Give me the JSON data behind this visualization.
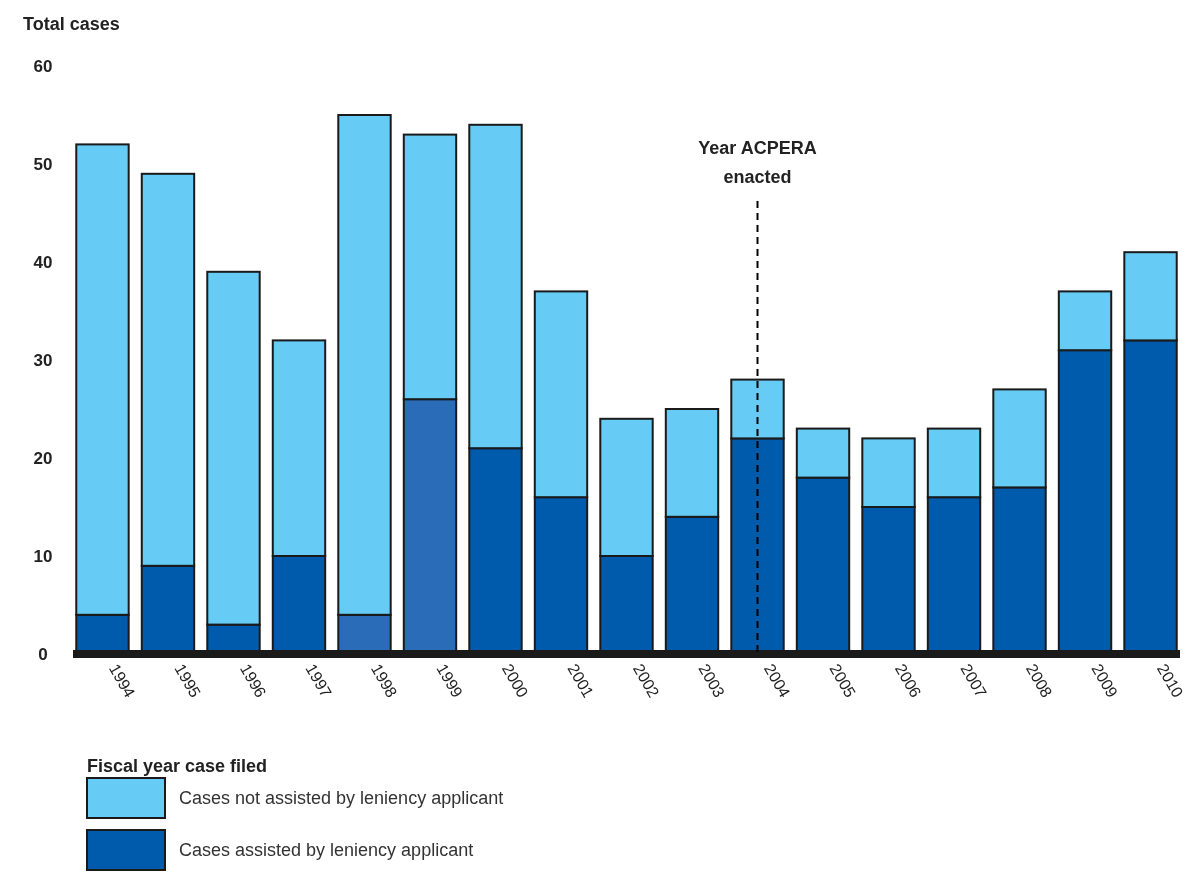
{
  "chart_data": {
    "type": "bar",
    "stacked": true,
    "ylabel": "Total cases",
    "xlabel": "Fiscal year case filed",
    "categories": [
      "1994",
      "1995",
      "1996",
      "1997",
      "1998",
      "1999",
      "2000",
      "2001",
      "2002",
      "2003",
      "2004",
      "2005",
      "2006",
      "2007",
      "2008",
      "2009",
      "2010"
    ],
    "series": [
      {
        "name": "Cases assisted by leniency applicant",
        "color": "#005bac",
        "colors": [
          "#005bac",
          "#005bac",
          "#005bac",
          "#005bac",
          "#2a6cb8",
          "#2a6cb8",
          "#005bac",
          "#005bac",
          "#005bac",
          "#005bac",
          "#005bac",
          "#005bac",
          "#005bac",
          "#005bac",
          "#005bac",
          "#005bac",
          "#005bac"
        ],
        "values": [
          4,
          9,
          3,
          10,
          4,
          26,
          21,
          16,
          10,
          14,
          22,
          18,
          15,
          16,
          17,
          31,
          32
        ]
      },
      {
        "name": "Cases not assisted by leniency applicant",
        "color": "#66ccf5",
        "values": [
          48,
          40,
          36,
          22,
          51,
          27,
          33,
          21,
          14,
          11,
          6,
          5,
          7,
          7,
          10,
          6,
          9
        ]
      }
    ],
    "ylim": [
      0,
      60
    ],
    "yticks": [
      0,
      10,
      20,
      30,
      40,
      50,
      60
    ],
    "grid": false,
    "legend": "bottom left",
    "ref_lines": [
      {
        "axis": "x",
        "value": "2004",
        "label": "Year ACPERA enacted",
        "line_style": "dashed",
        "color": "#000000"
      }
    ]
  }
}
